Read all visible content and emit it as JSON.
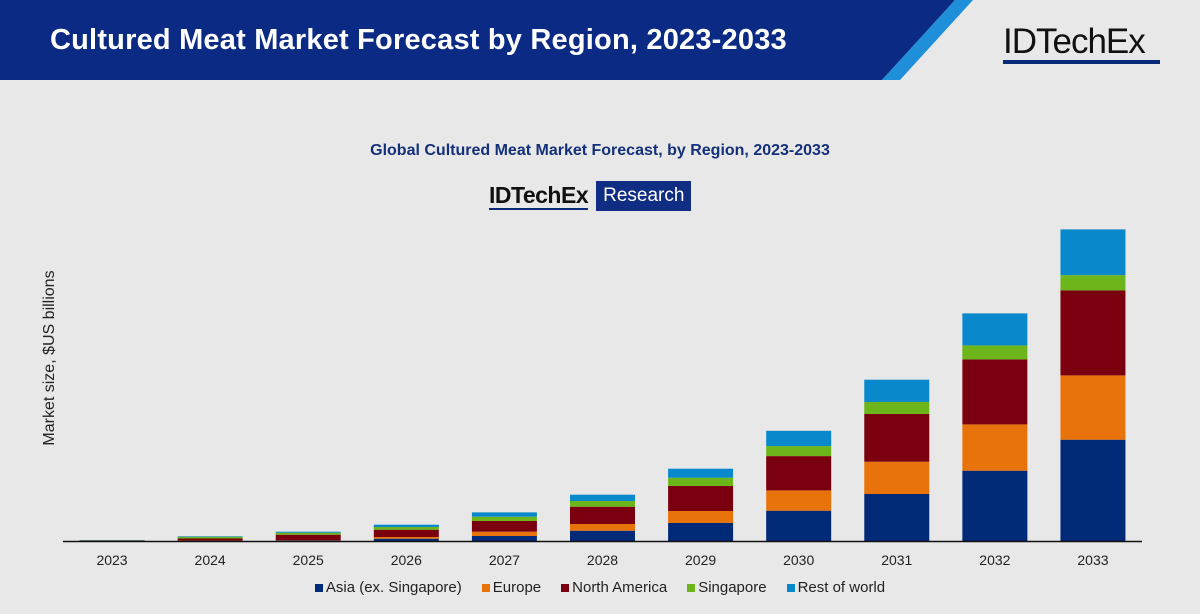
{
  "banner": {
    "title": "Cultured Meat Market Forecast by Region, 2023-2033",
    "logo": "IDTechEx",
    "colors": {
      "navy": "#0b2a84",
      "stripe": "#1e8fd8"
    }
  },
  "chart_data": {
    "type": "bar",
    "stacked": true,
    "title": "Global Cultured Meat Market Forecast, by Region, 2023-2033",
    "watermark": {
      "brand": "IDTechEx",
      "label": "Research"
    },
    "xlabel": "",
    "ylabel": "Market size, $US billions",
    "ylim": [
      0,
      31.5
    ],
    "grid": false,
    "legend_position": "bottom",
    "categories": [
      "2023",
      "2024",
      "2025",
      "2026",
      "2027",
      "2028",
      "2029",
      "2030",
      "2031",
      "2032",
      "2033"
    ],
    "series": [
      {
        "name": "Asia (ex. Singapore)",
        "color": "#002a78",
        "values": [
          0.02,
          0.03,
          0.05,
          0.23,
          0.5,
          1.03,
          1.8,
          3.03,
          4.7,
          7.03,
          10.13
        ]
      },
      {
        "name": "Europe",
        "color": "#e8730a",
        "values": [
          0.01,
          0.02,
          0.03,
          0.17,
          0.43,
          0.67,
          1.2,
          2.03,
          3.23,
          4.63,
          6.43
        ]
      },
      {
        "name": "North America",
        "color": "#7a0010",
        "values": [
          0.03,
          0.2,
          0.55,
          0.73,
          1.07,
          1.73,
          2.5,
          3.43,
          4.77,
          6.5,
          8.5
        ]
      },
      {
        "name": "Singapore",
        "color": "#6cb51a",
        "values": [
          0.02,
          0.17,
          0.2,
          0.27,
          0.43,
          0.57,
          0.83,
          1.0,
          1.2,
          1.4,
          1.53
        ]
      },
      {
        "name": "Rest of world",
        "color": "#0a88cc",
        "values": [
          0.01,
          0.06,
          0.1,
          0.23,
          0.43,
          0.63,
          0.9,
          1.53,
          2.23,
          3.2,
          4.57
        ]
      }
    ]
  }
}
